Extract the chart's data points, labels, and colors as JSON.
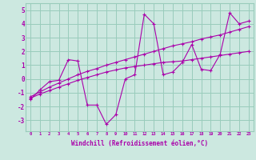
{
  "xlabel": "Windchill (Refroidissement éolien,°C)",
  "bg_color": "#cce8e0",
  "grid_color": "#99ccbb",
  "line_color": "#aa00aa",
  "x_data": [
    0,
    1,
    2,
    3,
    4,
    5,
    6,
    7,
    8,
    9,
    10,
    11,
    12,
    13,
    14,
    15,
    16,
    17,
    18,
    19,
    20,
    21,
    22,
    23
  ],
  "y_zigzag": [
    -1.5,
    -0.8,
    -0.2,
    -0.1,
    1.4,
    1.3,
    -1.9,
    -1.9,
    -3.3,
    -2.6,
    0.0,
    0.3,
    4.7,
    4.0,
    0.3,
    0.5,
    1.2,
    2.5,
    0.7,
    0.6,
    1.8,
    4.8,
    4.0,
    4.2
  ],
  "y_smooth": [
    -1.4,
    -1.1,
    -0.85,
    -0.6,
    -0.35,
    -0.1,
    0.1,
    0.3,
    0.5,
    0.65,
    0.8,
    0.9,
    1.0,
    1.1,
    1.2,
    1.25,
    1.3,
    1.4,
    1.5,
    1.6,
    1.7,
    1.8,
    1.9,
    2.0
  ],
  "y_trend": [
    -1.3,
    -0.95,
    -0.6,
    -0.3,
    0.0,
    0.3,
    0.55,
    0.75,
    1.0,
    1.2,
    1.4,
    1.6,
    1.8,
    2.0,
    2.2,
    2.4,
    2.55,
    2.7,
    2.9,
    3.05,
    3.2,
    3.4,
    3.6,
    3.8
  ],
  "xlim": [
    -0.5,
    23.5
  ],
  "ylim": [
    -3.8,
    5.5
  ],
  "yticks": [
    -3,
    -2,
    -1,
    0,
    1,
    2,
    3,
    4,
    5
  ],
  "xticks": [
    0,
    1,
    2,
    3,
    4,
    5,
    6,
    7,
    8,
    9,
    10,
    11,
    12,
    13,
    14,
    15,
    16,
    17,
    18,
    19,
    20,
    21,
    22,
    23
  ]
}
